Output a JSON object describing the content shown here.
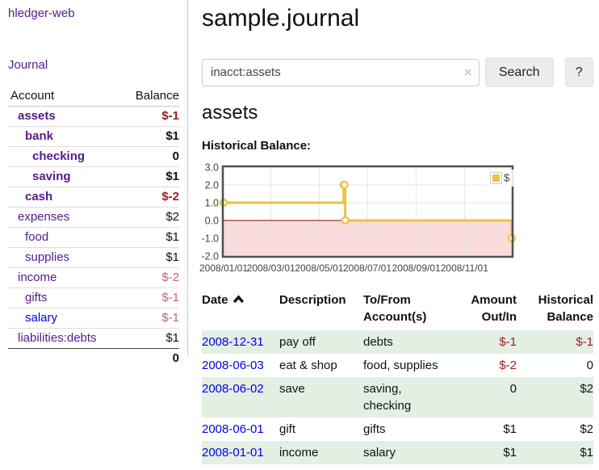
{
  "sidebar": {
    "app_title": "hledger-web",
    "nav_journal": "Journal",
    "accounts_table": {
      "account_header": "Account",
      "balance_header": "Balance",
      "rows": [
        {
          "name": "assets",
          "balance": "$-1",
          "depth": 1,
          "bold": true,
          "neg": "strong"
        },
        {
          "name": "bank",
          "balance": "$1",
          "depth": 2,
          "bold": true
        },
        {
          "name": "checking",
          "balance": "0",
          "depth": 3,
          "bold": true
        },
        {
          "name": "saving",
          "balance": "$1",
          "depth": 3,
          "bold": true
        },
        {
          "name": "cash",
          "balance": "$-2",
          "depth": 2,
          "bold": true,
          "neg": "strong"
        },
        {
          "name": "expenses",
          "balance": "$2",
          "depth": 1
        },
        {
          "name": "food",
          "balance": "$1",
          "depth": 2
        },
        {
          "name": "supplies",
          "balance": "$1",
          "depth": 2
        },
        {
          "name": "income",
          "balance": "$-2",
          "depth": 1,
          "neg": "soft"
        },
        {
          "name": "gifts",
          "balance": "$-1",
          "depth": 2,
          "neg": "soft"
        },
        {
          "name": "salary",
          "balance": "$-1",
          "depth": 2,
          "neg": "soft",
          "link_color": "blue"
        },
        {
          "name": "liabilities:debts",
          "balance": "$1",
          "depth": 1
        }
      ],
      "total": "0"
    }
  },
  "header": {
    "title": "sample.journal"
  },
  "search": {
    "value": "inacct:assets",
    "clear_label": "×",
    "button_label": "Search",
    "help_label": "?"
  },
  "account_page": {
    "heading": "assets",
    "chart_title": "Historical Balance:"
  },
  "chart_data": {
    "type": "line",
    "title": "Historical Balance:",
    "series": [
      {
        "name": "$",
        "color": "#edc240",
        "steps": true,
        "points": [
          [
            "2008-01-01",
            1
          ],
          [
            "2008-06-01",
            2
          ],
          [
            "2008-06-02",
            2
          ],
          [
            "2008-06-03",
            0
          ],
          [
            "2008-12-31",
            -1
          ]
        ]
      }
    ],
    "x_range": [
      "2008-01-01",
      "2008-12-31"
    ],
    "ylim": [
      -2,
      3
    ],
    "y_ticks": [
      "3.0",
      "2.0",
      "1.0",
      "0.0",
      "-1.0",
      "-2.0"
    ],
    "x_ticks": [
      "2008/01/01",
      "2008/03/01",
      "2008/05/01",
      "2008/07/01",
      "2008/09/01",
      "2008/11/01"
    ],
    "grid": true,
    "legend_position": "top-right",
    "legend_label": "$",
    "colors": {
      "line": "#edc240",
      "marker_fill": "#ffffff",
      "negative_region_fill": "#fbdcdc",
      "zero_line": "#8b0000",
      "plot_border": "#515151",
      "gridline": "#e6e6e6",
      "tick_text": "#444444"
    }
  },
  "register": {
    "headers": {
      "date": "Date",
      "description": "Description",
      "tofrom": "To/From\nAccount(s)",
      "amount": "Amount\nOut/In",
      "balance": "Historical\nBalance"
    },
    "sort_icon": "chevron-up",
    "rows": [
      {
        "date": "2008-12-31",
        "description": "pay off",
        "accounts": "debts",
        "amount": "$-1",
        "amount_neg": true,
        "balance": "$-1",
        "balance_neg": true
      },
      {
        "date": "2008-06-03",
        "description": "eat & shop",
        "accounts": "food, supplies",
        "amount": "$-2",
        "amount_neg": true,
        "balance": "0"
      },
      {
        "date": "2008-06-02",
        "description": "save",
        "accounts": "saving, checking",
        "amount": "0",
        "balance": "$2"
      },
      {
        "date": "2008-06-01",
        "description": "gift",
        "accounts": "gifts",
        "amount": "$1",
        "balance": "$2"
      },
      {
        "date": "2008-01-01",
        "description": "income",
        "accounts": "salary",
        "amount": "$1",
        "balance": "$1"
      }
    ]
  }
}
